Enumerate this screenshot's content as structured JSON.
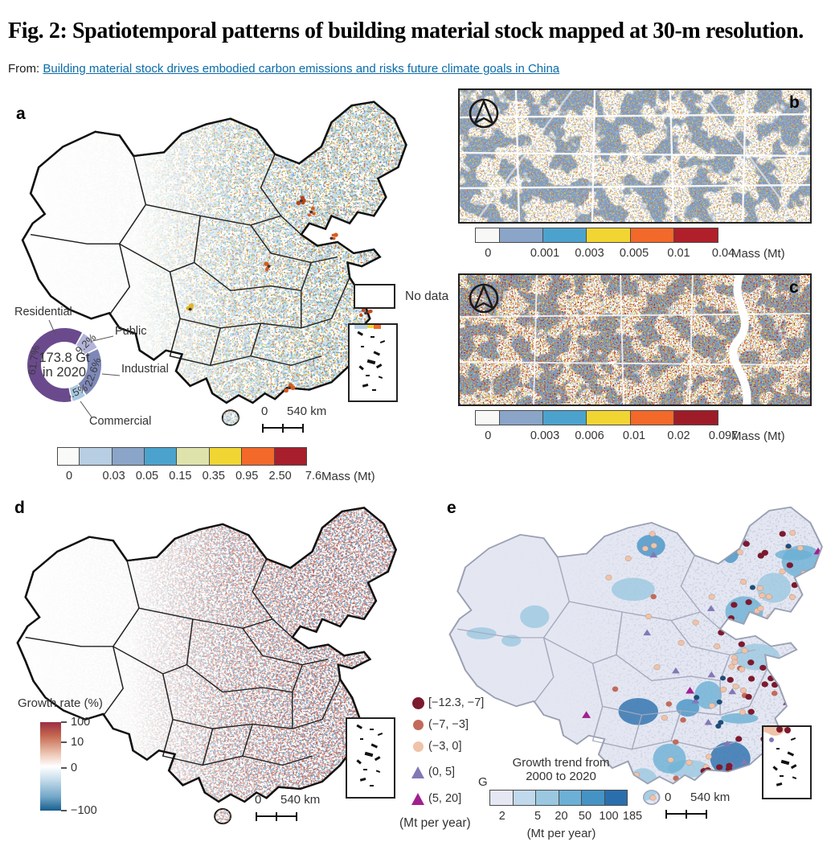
{
  "header": {
    "title": "Fig. 2: Spatiotemporal patterns of building material stock mapped at 30-m resolution.",
    "from_label": "From:",
    "from_link": "Building material stock drives embodied carbon emissions and risks future climate goals in China",
    "link_color": "#0b6ca8"
  },
  "panels": {
    "a": {
      "label": "a",
      "no_data_label": "No data",
      "scalebar": {
        "zero": "0",
        "distance": "540 km"
      },
      "colorbar": {
        "ticks": [
          "0",
          "0.03",
          "0.05",
          "0.15",
          "0.35",
          "0.95",
          "2.50",
          "7.6"
        ],
        "unit": "Mass (Mt)",
        "colors": [
          "#fafbf8",
          "#b7cee3",
          "#8aa5c8",
          "#4ba3cd",
          "#dde3ab",
          "#f1d532",
          "#f2692a",
          "#a81e2c"
        ]
      },
      "donut": {
        "center_value": "173.8 Gt",
        "center_label": "in 2020",
        "start_angle_deg": 30,
        "segments": [
          {
            "name": "Public",
            "pct": 9.2,
            "pct_label": "9.2%",
            "color": "#b3b4d8"
          },
          {
            "name": "Industrial",
            "pct": 22.6,
            "pct_label": "22.6%",
            "color": "#7e88b7"
          },
          {
            "name": "Commercial",
            "pct": 6.5,
            "pct_label": "6.5%",
            "color": "#a9c8e0"
          },
          {
            "name": "Residential",
            "pct": 61.7,
            "pct_label": "61.7%",
            "color": "#6a4a8c"
          }
        ]
      }
    },
    "b": {
      "label": "b",
      "colorbar": {
        "ticks": [
          "0",
          "0.001",
          "0.003",
          "0.005",
          "0.01",
          "0.04"
        ],
        "unit": "Mass (Mt)",
        "colors": [
          "#f8f9f6",
          "#8aa5c8",
          "#4ba3cd",
          "#f1d532",
          "#f2692a",
          "#b01f2a"
        ]
      }
    },
    "c": {
      "label": "c",
      "colorbar": {
        "ticks": [
          "0",
          "0.003",
          "0.006",
          "0.01",
          "0.02",
          "0.097"
        ],
        "unit": "Mass (Mt)",
        "colors": [
          "#f8f9f6",
          "#8aa5c8",
          "#4ba3cd",
          "#f1d532",
          "#f2692a",
          "#9d1c28"
        ]
      }
    },
    "d": {
      "label": "d",
      "legend": {
        "title": "Growth rate (%)",
        "gradient": [
          "#9b2d45",
          "#c4674f",
          "#eec7b4",
          "#ffffff",
          "#cadfed",
          "#70a5c6",
          "#175e8e"
        ],
        "gradient_stops": [
          0,
          0.15,
          0.36,
          0.5,
          0.64,
          0.85,
          1
        ],
        "ticks": [
          {
            "label": "100",
            "pos": 0
          },
          {
            "label": "10",
            "pos": 0.23
          },
          {
            "label": "0",
            "pos": 0.52
          },
          {
            "label": "−100",
            "pos": 1
          }
        ]
      },
      "scalebar": {
        "zero": "0",
        "distance": "540 km"
      }
    },
    "e": {
      "label": "e",
      "point_legend": {
        "items": [
          {
            "shape": "circle",
            "color": "#7c1a2e",
            "size": 15,
            "label": "[−12.3, −7]"
          },
          {
            "shape": "circle",
            "color": "#c26b5b",
            "size": 13,
            "label": "(−7, −3]"
          },
          {
            "shape": "circle",
            "color": "#efc3a9",
            "size": 13,
            "label": "(−3, 0]"
          },
          {
            "shape": "triangle",
            "color": "#8278b5",
            "size": 15,
            "label": "(0, 5]"
          },
          {
            "shape": "triangle",
            "color": "#a1208e",
            "size": 15,
            "label": "(5, 20]"
          }
        ],
        "unit": "(Mt per year)"
      },
      "colorbar": {
        "title_line1": "Growth trend from",
        "title_line2": "2000 to 2020",
        "ticks": [
          "2",
          "5",
          "20",
          "50",
          "100",
          "185"
        ],
        "unit": "(Mt per year)",
        "colors": [
          "#e5e8f3",
          "#c1d9ec",
          "#9bc8e0",
          "#6cb0d5",
          "#4593c5",
          "#2a6fad"
        ],
        "stray_label": "G"
      },
      "scalebar": {
        "zero": "0",
        "distance": "540 km"
      }
    }
  }
}
